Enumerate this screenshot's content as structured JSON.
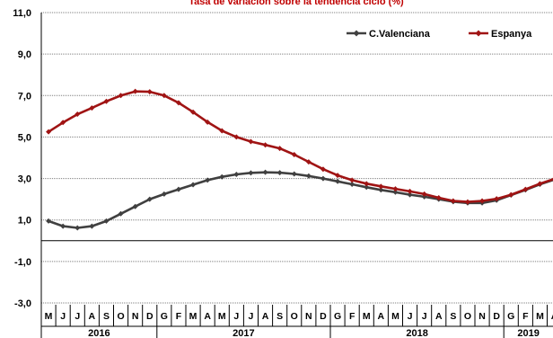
{
  "chart_data": {
    "type": "line",
    "title": "Tasa de variación sobre la tendencia ciclo (%)",
    "title_color": "#c00000",
    "ylim": [
      -3,
      11
    ],
    "yticks": [
      "11,0",
      "9,0",
      "7,0",
      "5,0",
      "3,0",
      "1,0",
      "-1,0",
      "-3,0"
    ],
    "ytick_values": [
      11,
      9,
      7,
      5,
      3,
      1,
      -1,
      -3
    ],
    "grid": true,
    "legend_position": "top-right",
    "months": [
      "M",
      "J",
      "J",
      "A",
      "S",
      "O",
      "N",
      "D",
      "G",
      "F",
      "M",
      "A",
      "M",
      "J",
      "J",
      "A",
      "S",
      "O",
      "N",
      "D",
      "G",
      "F",
      "M",
      "A",
      "M",
      "J",
      "J",
      "A",
      "S",
      "O",
      "N",
      "D",
      "G",
      "F",
      "M",
      "A"
    ],
    "years": [
      {
        "label": "2016",
        "start": 0,
        "end": 8
      },
      {
        "label": "2017",
        "start": 8,
        "end": 20
      },
      {
        "label": "2018",
        "start": 20,
        "end": 32
      },
      {
        "label": "2019",
        "start": 32,
        "end": 36
      }
    ],
    "series": [
      {
        "name": "C.Valenciana",
        "color": "#404040",
        "values": [
          0.95,
          0.7,
          0.62,
          0.7,
          0.95,
          1.3,
          1.65,
          2.0,
          2.25,
          2.48,
          2.7,
          2.92,
          3.08,
          3.2,
          3.27,
          3.3,
          3.28,
          3.22,
          3.12,
          3.0,
          2.86,
          2.72,
          2.58,
          2.45,
          2.34,
          2.22,
          2.12,
          2.0,
          1.88,
          1.82,
          1.82,
          1.95,
          2.2,
          2.45,
          2.72,
          2.95
        ]
      },
      {
        "name": "Espanya",
        "color": "#a01414",
        "values": [
          5.25,
          5.7,
          6.1,
          6.4,
          6.72,
          7.0,
          7.2,
          7.18,
          7.0,
          6.65,
          6.2,
          5.72,
          5.3,
          5.0,
          4.78,
          4.62,
          4.45,
          4.15,
          3.8,
          3.45,
          3.15,
          2.92,
          2.75,
          2.62,
          2.5,
          2.38,
          2.25,
          2.07,
          1.92,
          1.87,
          1.92,
          2.02,
          2.22,
          2.48,
          2.75,
          2.98
        ]
      }
    ]
  }
}
